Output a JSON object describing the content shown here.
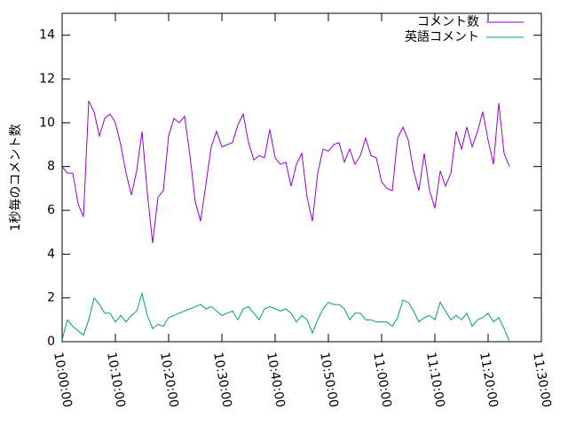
{
  "chart_data": {
    "type": "line",
    "ylabel": "1秒毎のコメント数",
    "legend": "top right",
    "xlim": [
      "10:00:00",
      "11:30:00"
    ],
    "xticks": [
      "10:00:00",
      "10:10:00",
      "10:20:00",
      "10:30:00",
      "10:40:00",
      "10:50:00",
      "11:00:00",
      "11:10:00",
      "11:20:00",
      "11:30:00"
    ],
    "ylim": [
      0,
      15
    ],
    "yticks": [
      0,
      2,
      4,
      6,
      8,
      10,
      12,
      14
    ],
    "x": [
      "10:00:00",
      "10:01:00",
      "10:02:00",
      "10:03:00",
      "10:04:00",
      "10:05:00",
      "10:06:00",
      "10:07:00",
      "10:08:00",
      "10:09:00",
      "10:10:00",
      "10:11:00",
      "10:12:00",
      "10:13:00",
      "10:14:00",
      "10:15:00",
      "10:16:00",
      "10:17:00",
      "10:18:00",
      "10:19:00",
      "10:20:00",
      "10:21:00",
      "10:22:00",
      "10:23:00",
      "10:24:00",
      "10:25:00",
      "10:26:00",
      "10:27:00",
      "10:28:00",
      "10:29:00",
      "10:30:00",
      "10:31:00",
      "10:32:00",
      "10:33:00",
      "10:34:00",
      "10:35:00",
      "10:36:00",
      "10:37:00",
      "10:38:00",
      "10:39:00",
      "10:40:00",
      "10:41:00",
      "10:42:00",
      "10:43:00",
      "10:44:00",
      "10:45:00",
      "10:46:00",
      "10:47:00",
      "10:48:00",
      "10:49:00",
      "10:50:00",
      "10:51:00",
      "10:52:00",
      "10:53:00",
      "10:54:00",
      "10:55:00",
      "10:56:00",
      "10:57:00",
      "10:58:00",
      "10:59:00",
      "11:00:00",
      "11:01:00",
      "11:02:00",
      "11:03:00",
      "11:04:00",
      "11:05:00",
      "11:06:00",
      "11:07:00",
      "11:08:00",
      "11:09:00",
      "11:10:00",
      "11:11:00",
      "11:12:00",
      "11:13:00",
      "11:14:00",
      "11:15:00",
      "11:16:00",
      "11:17:00",
      "11:18:00",
      "11:19:00",
      "11:20:00",
      "11:21:00",
      "11:22:00",
      "11:23:00",
      "11:24:00"
    ],
    "series": [
      {
        "name": "コメント数",
        "color": "#9400d3",
        "values": [
          8.0,
          7.7,
          7.7,
          6.3,
          5.7,
          11.0,
          10.5,
          9.4,
          10.2,
          10.4,
          10.0,
          9.0,
          7.7,
          6.7,
          7.8,
          9.6,
          6.8,
          4.5,
          6.6,
          6.9,
          9.4,
          10.2,
          10.0,
          10.3,
          8.5,
          6.4,
          5.5,
          7.2,
          8.9,
          9.6,
          8.9,
          9.0,
          9.1,
          9.9,
          10.4,
          9.1,
          8.3,
          8.5,
          8.4,
          9.7,
          8.4,
          8.1,
          8.2,
          7.1,
          8.1,
          8.6,
          6.6,
          5.5,
          7.7,
          8.8,
          8.7,
          9.0,
          9.1,
          8.2,
          8.8,
          8.1,
          8.5,
          9.3,
          8.5,
          8.4,
          7.3,
          7.0,
          6.9,
          9.3,
          9.8,
          9.2,
          7.8,
          6.9,
          8.6,
          6.9,
          6.1,
          7.8,
          7.1,
          7.7,
          9.6,
          8.8,
          9.8,
          8.9,
          9.6,
          10.5,
          9.2,
          8.1,
          10.9,
          8.6,
          8.0
        ]
      },
      {
        "name": "英語コメント",
        "color": "#009e73",
        "values": [
          0.1,
          1.0,
          0.7,
          0.5,
          0.3,
          1.0,
          2.0,
          1.7,
          1.3,
          1.3,
          0.9,
          1.2,
          0.9,
          1.2,
          1.4,
          2.2,
          1.2,
          0.6,
          0.8,
          0.7,
          1.1,
          1.2,
          1.3,
          1.4,
          1.5,
          1.6,
          1.7,
          1.5,
          1.6,
          1.4,
          1.2,
          1.3,
          1.4,
          1.0,
          1.5,
          1.6,
          1.3,
          1.0,
          1.5,
          1.6,
          1.5,
          1.4,
          1.5,
          1.3,
          0.9,
          1.2,
          1.0,
          0.4,
          1.0,
          1.5,
          1.8,
          1.7,
          1.7,
          1.5,
          1.0,
          1.3,
          1.3,
          1.0,
          1.0,
          0.9,
          0.9,
          0.9,
          0.7,
          1.1,
          1.9,
          1.8,
          1.4,
          0.9,
          1.1,
          1.2,
          1.0,
          1.8,
          1.4,
          1.0,
          1.2,
          1.0,
          1.3,
          0.7,
          1.0,
          1.1,
          1.3,
          0.9,
          1.1,
          0.6,
          0.0
        ]
      }
    ]
  }
}
